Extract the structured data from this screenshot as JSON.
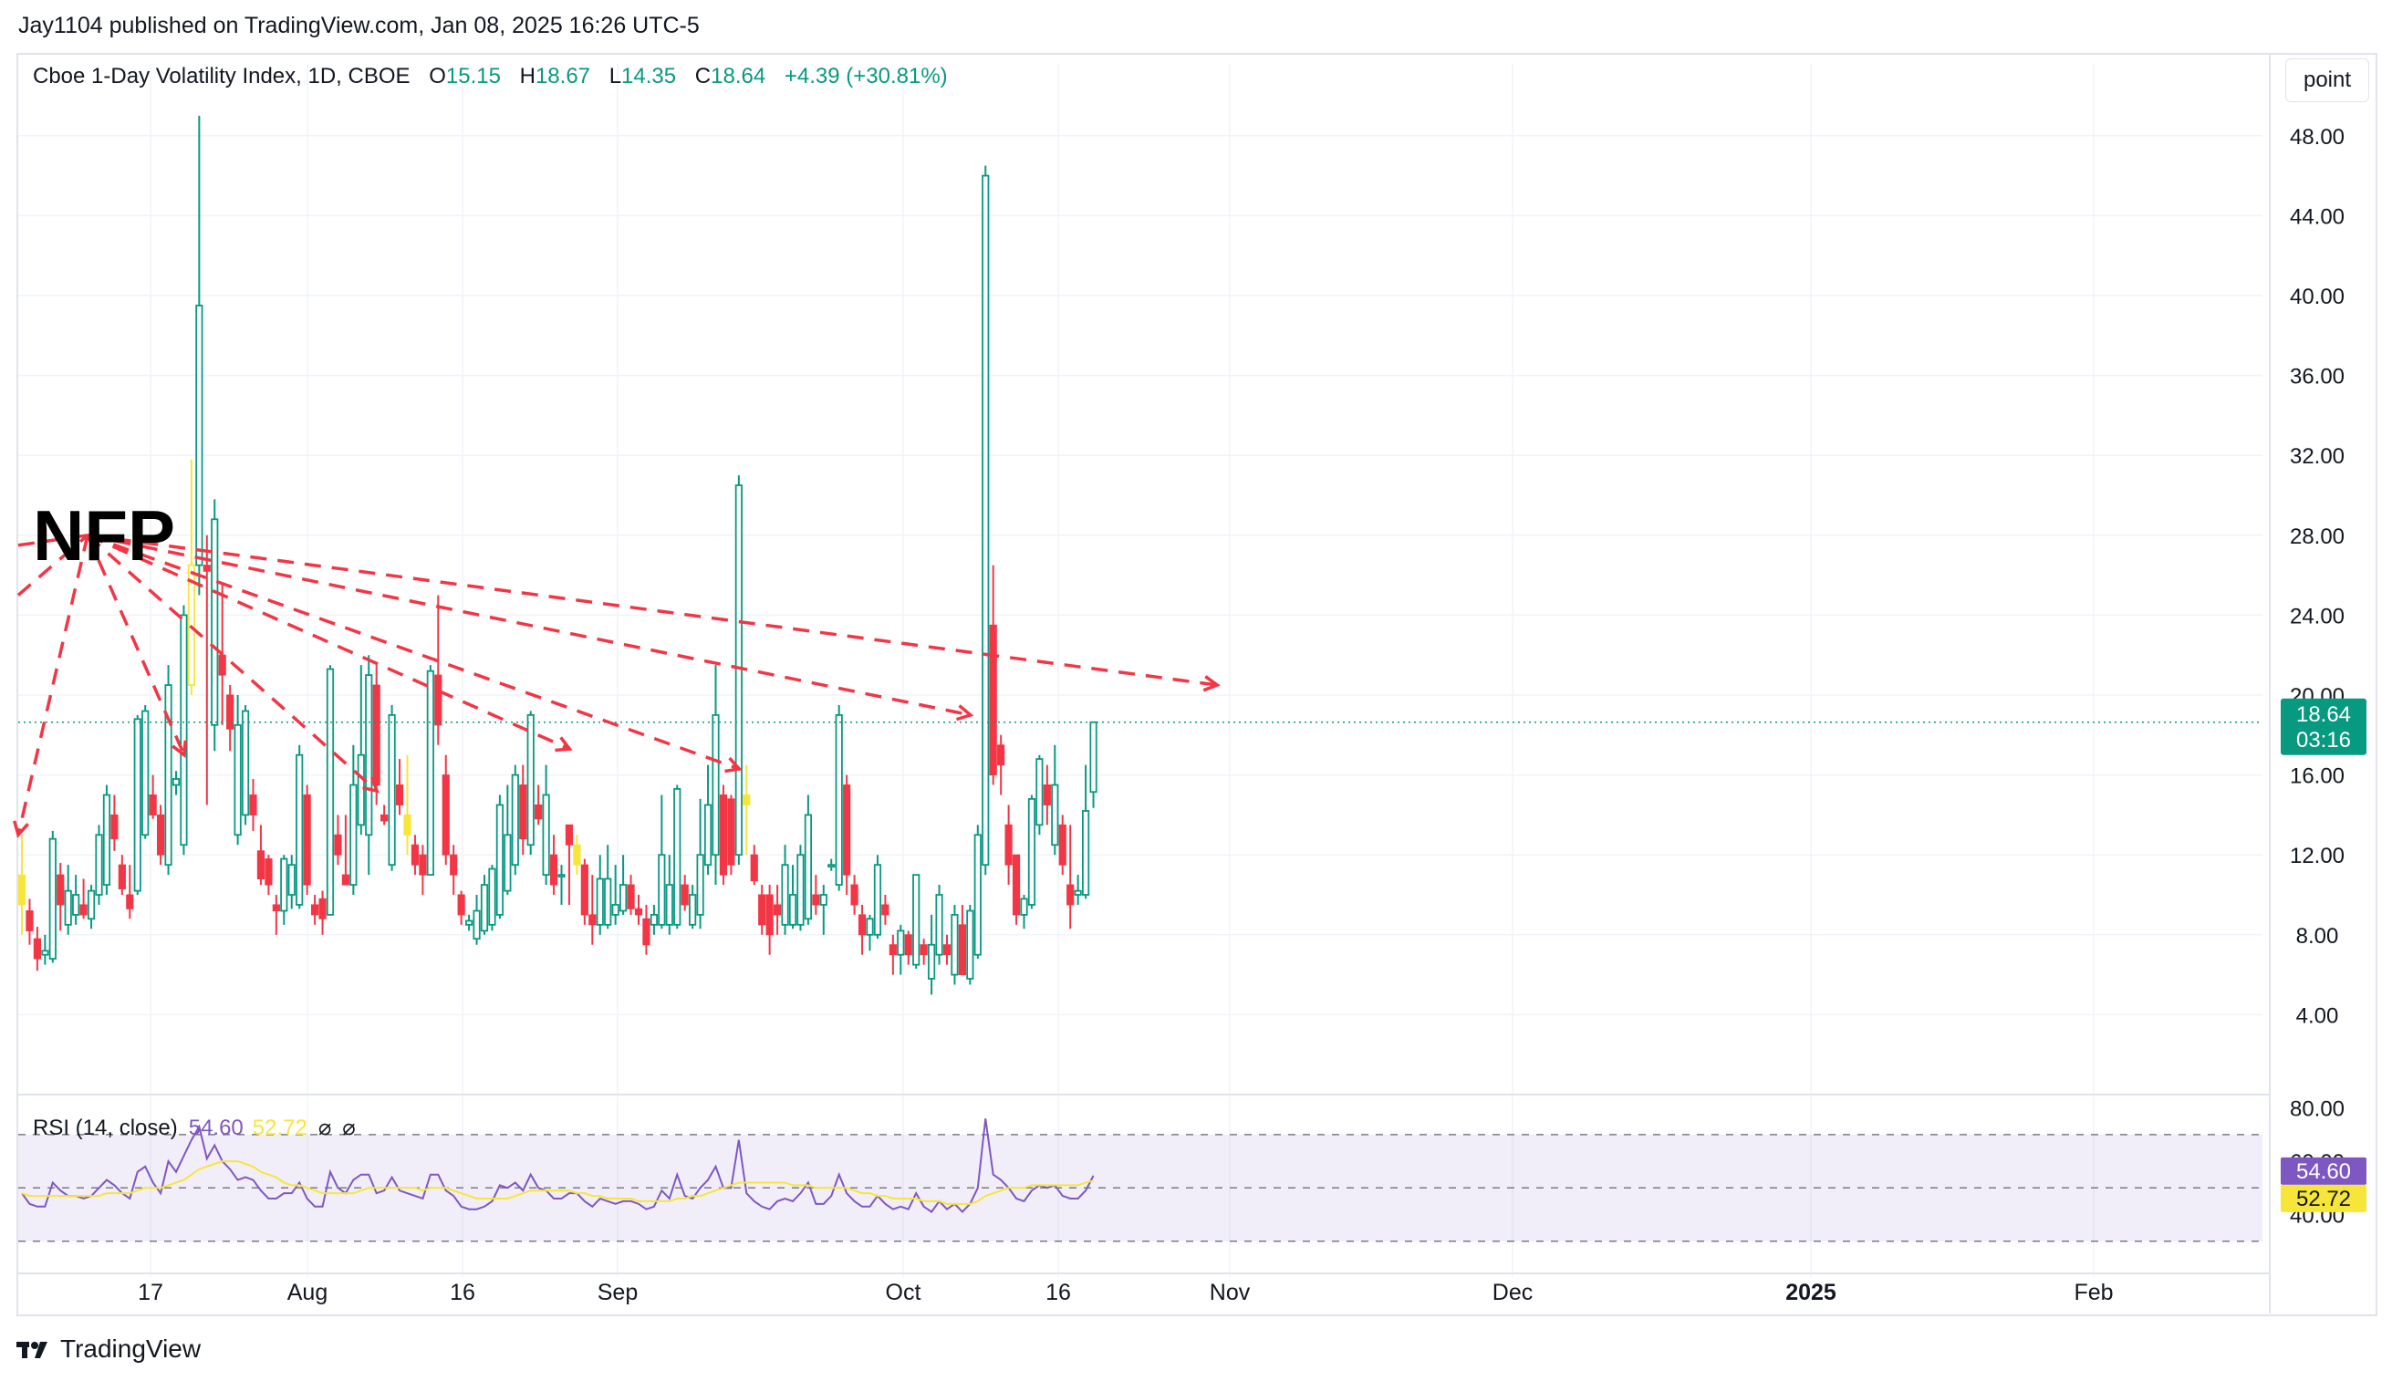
{
  "header": {
    "credit": "Jay1104 published on TradingView.com, Jan 08, 2025 16:26 UTC-5"
  },
  "legend": {
    "symbol": "Cboe 1-Day Volatility Index, 1D, CBOE",
    "o_label": "O",
    "o_value": "15.15",
    "h_label": "H",
    "h_value": "18.67",
    "l_label": "L",
    "l_value": "14.35",
    "c_label": "C",
    "c_value": "18.64",
    "change": "+4.39 (+30.81%)"
  },
  "scale_button": "point",
  "annotation": {
    "text": "NFP"
  },
  "price_badge": {
    "price": "18.64",
    "countdown": "03:16"
  },
  "rsi_legend": {
    "label": "RSI (14, close)",
    "rsi_value": "54.60",
    "ma_value": "52.72",
    "eye1": "⌀",
    "eye2": "⌀"
  },
  "brand": {
    "name": "TradingView"
  },
  "colors": {
    "up": "#089981",
    "down": "#f23645",
    "highlight": "#f7e63a",
    "arrows": "#f23645",
    "rsi": "#7e57c2",
    "rsi_ma": "#f7e63a"
  },
  "chart_data": {
    "type": "candlestick",
    "y_ticks": [
      4,
      8,
      12,
      16,
      20,
      24,
      28,
      32,
      36,
      40,
      44,
      48
    ],
    "ylim": [
      0,
      50
    ],
    "x_labels": [
      "17",
      "Aug",
      "16",
      "Sep",
      "Oct",
      "16",
      "Nov",
      "Dec",
      "2025",
      "Feb"
    ],
    "last_price": 18.64,
    "candles": [
      [
        11.0,
        13.0,
        8.0,
        9.5
      ],
      [
        9.2,
        9.8,
        7.5,
        8.2
      ],
      [
        7.8,
        8.4,
        6.2,
        6.8
      ],
      [
        7.0,
        8.0,
        6.5,
        7.2
      ],
      [
        6.8,
        13.2,
        6.6,
        12.8
      ],
      [
        11.0,
        11.6,
        8.2,
        9.5
      ],
      [
        8.5,
        11.5,
        8.0,
        10.2
      ],
      [
        9.0,
        11.0,
        8.5,
        10.0
      ],
      [
        9.5,
        10.8,
        8.8,
        9.0
      ],
      [
        8.8,
        10.5,
        8.3,
        10.2
      ],
      [
        10.0,
        13.5,
        9.5,
        13.0
      ],
      [
        10.5,
        15.5,
        10.0,
        15.0
      ],
      [
        14.0,
        15.0,
        12.2,
        12.8
      ],
      [
        11.5,
        12.0,
        10.0,
        10.3
      ],
      [
        10.0,
        11.5,
        8.8,
        9.3
      ],
      [
        10.2,
        19.0,
        10.0,
        18.8
      ],
      [
        13.0,
        19.5,
        12.8,
        19.2
      ],
      [
        15.0,
        16.0,
        13.8,
        14.0
      ],
      [
        14.0,
        14.5,
        11.5,
        12.0
      ],
      [
        11.5,
        21.5,
        11.0,
        20.5
      ],
      [
        15.5,
        16.2,
        15.0,
        15.8
      ],
      [
        12.5,
        24.5,
        12.0,
        24.0
      ],
      [
        20.5,
        31.8,
        20.0,
        26.5
      ],
      [
        26.5,
        49.0,
        25.0,
        39.5
      ],
      [
        26.5,
        28.0,
        14.5,
        26.2
      ],
      [
        18.5,
        29.8,
        17.2,
        28.8
      ],
      [
        22.0,
        25.5,
        18.5,
        21.0
      ],
      [
        20.0,
        20.5,
        17.2,
        18.3
      ],
      [
        13.0,
        20.0,
        12.5,
        18.5
      ],
      [
        14.0,
        19.5,
        13.5,
        19.2
      ],
      [
        15.0,
        15.8,
        13.2,
        14.0
      ],
      [
        12.2,
        13.5,
        10.5,
        10.8
      ],
      [
        11.8,
        12.0,
        10.0,
        10.5
      ],
      [
        9.5,
        10.0,
        8.0,
        9.2
      ],
      [
        9.2,
        12.0,
        8.5,
        11.8
      ],
      [
        10.0,
        12.0,
        9.3,
        11.5
      ],
      [
        9.5,
        17.5,
        9.3,
        17.0
      ],
      [
        15.0,
        15.5,
        10.0,
        10.5
      ],
      [
        9.5,
        10.0,
        8.5,
        9.0
      ],
      [
        9.8,
        10.2,
        8.0,
        8.8
      ],
      [
        9.0,
        21.5,
        9.0,
        21.3
      ],
      [
        13.0,
        14.0,
        11.5,
        12.0
      ],
      [
        11.0,
        14.0,
        10.5,
        10.5
      ],
      [
        10.5,
        17.5,
        10.0,
        15.5
      ],
      [
        13.5,
        21.5,
        13.0,
        17.0
      ],
      [
        13.0,
        22.0,
        11.0,
        21.0
      ],
      [
        20.5,
        21.5,
        14.5,
        15.5
      ],
      [
        14.0,
        14.5,
        13.5,
        13.7
      ],
      [
        11.5,
        19.5,
        11.2,
        19.0
      ],
      [
        15.5,
        16.8,
        14.0,
        14.5
      ],
      [
        14.0,
        17.0,
        12.0,
        13.0
      ],
      [
        12.5,
        13.0,
        11.0,
        11.5
      ],
      [
        12.0,
        12.5,
        10.0,
        11.0
      ],
      [
        11.0,
        21.5,
        11.0,
        21.2
      ],
      [
        21.0,
        25.0,
        17.5,
        18.5
      ],
      [
        16.0,
        17.0,
        11.5,
        12.0
      ],
      [
        12.0,
        12.5,
        10.0,
        11.0
      ],
      [
        10.0,
        10.2,
        8.5,
        9.0
      ],
      [
        8.5,
        9.0,
        8.2,
        8.7
      ],
      [
        7.8,
        10.0,
        7.5,
        9.2
      ],
      [
        8.2,
        11.0,
        8.0,
        10.5
      ],
      [
        8.5,
        11.5,
        8.2,
        11.3
      ],
      [
        9.0,
        15.0,
        8.8,
        14.5
      ],
      [
        10.2,
        15.5,
        10.0,
        13.0
      ],
      [
        11.5,
        16.5,
        11.0,
        16.0
      ],
      [
        15.5,
        16.5,
        12.0,
        12.8
      ],
      [
        12.5,
        19.2,
        12.0,
        19.0
      ],
      [
        14.5,
        15.5,
        13.5,
        13.8
      ],
      [
        11.0,
        16.5,
        10.5,
        15.0
      ],
      [
        12.0,
        13.0,
        10.0,
        10.5
      ],
      [
        11.0,
        11.5,
        9.5,
        11.0
      ],
      [
        13.5,
        13.5,
        9.5,
        12.5
      ],
      [
        12.5,
        13.0,
        11.0,
        11.5
      ],
      [
        11.5,
        11.8,
        8.5,
        9.0
      ],
      [
        9.0,
        11.0,
        7.5,
        8.5
      ],
      [
        8.5,
        12.0,
        8.0,
        10.8
      ],
      [
        8.5,
        12.5,
        8.3,
        10.8
      ],
      [
        9.0,
        11.5,
        8.5,
        9.5
      ],
      [
        9.2,
        12.0,
        9.0,
        10.5
      ],
      [
        10.5,
        11.0,
        9.0,
        9.3
      ],
      [
        9.3,
        10.0,
        8.5,
        9.0
      ],
      [
        8.8,
        9.5,
        7.0,
        7.5
      ],
      [
        8.5,
        9.5,
        8.0,
        9.0
      ],
      [
        8.5,
        15.0,
        8.3,
        12.0
      ],
      [
        8.5,
        12.0,
        8.0,
        10.5
      ],
      [
        8.5,
        15.5,
        8.3,
        15.3
      ],
      [
        10.5,
        11.0,
        9.2,
        9.5
      ],
      [
        8.5,
        10.5,
        8.3,
        10.0
      ],
      [
        9.0,
        14.8,
        8.3,
        12.0
      ],
      [
        11.5,
        16.5,
        11.0,
        14.5
      ],
      [
        12.0,
        21.5,
        10.5,
        19.0
      ],
      [
        15.0,
        15.5,
        10.5,
        11.0
      ],
      [
        14.8,
        15.0,
        11.0,
        11.5
      ],
      [
        12.0,
        31.0,
        11.5,
        30.5
      ],
      [
        15.0,
        16.5,
        12.0,
        14.5
      ],
      [
        12.0,
        12.5,
        10.5,
        10.7
      ],
      [
        10.0,
        10.5,
        8.0,
        8.5
      ],
      [
        10.0,
        10.5,
        7.0,
        8.0
      ],
      [
        9.5,
        10.5,
        8.0,
        9.0
      ],
      [
        8.5,
        12.5,
        8.0,
        11.5
      ],
      [
        8.5,
        11.5,
        8.3,
        10.0
      ],
      [
        8.5,
        12.5,
        8.2,
        12.0
      ],
      [
        8.8,
        15.0,
        8.5,
        14.0
      ],
      [
        10.0,
        11.0,
        9.0,
        9.5
      ],
      [
        9.5,
        10.5,
        8.0,
        10.0
      ],
      [
        11.5,
        11.8,
        11.2,
        11.5
      ],
      [
        10.5,
        19.5,
        10.2,
        19.0
      ],
      [
        15.5,
        16.0,
        10.0,
        11.0
      ],
      [
        10.5,
        11.0,
        9.0,
        9.5
      ],
      [
        9.0,
        9.5,
        7.0,
        8.0
      ],
      [
        8.0,
        9.0,
        7.2,
        8.8
      ],
      [
        8.0,
        12.0,
        7.8,
        11.5
      ],
      [
        9.5,
        10.0,
        8.5,
        9.0
      ],
      [
        7.5,
        8.0,
        6.0,
        7.0
      ],
      [
        7.0,
        8.5,
        6.0,
        8.2
      ],
      [
        8.0,
        8.2,
        6.5,
        7.0
      ],
      [
        6.5,
        11.0,
        6.3,
        11.0
      ],
      [
        7.5,
        7.8,
        6.5,
        7.0
      ],
      [
        5.8,
        9.0,
        5.0,
        7.5
      ],
      [
        7.0,
        10.5,
        6.5,
        10.0
      ],
      [
        7.5,
        8.0,
        6.5,
        7.0
      ],
      [
        6.0,
        9.5,
        5.5,
        9.0
      ],
      [
        8.5,
        9.5,
        6.0,
        6.0
      ],
      [
        5.8,
        9.5,
        5.5,
        9.2
      ],
      [
        7.0,
        13.5,
        6.8,
        13.0
      ],
      [
        11.5,
        46.5,
        11.0,
        46.0
      ],
      [
        23.5,
        26.5,
        15.5,
        16.0
      ],
      [
        17.5,
        18.0,
        15.0,
        16.5
      ],
      [
        13.5,
        14.5,
        10.5,
        11.5
      ],
      [
        12.0,
        12.0,
        8.5,
        9.0
      ],
      [
        9.0,
        10.0,
        8.3,
        9.8
      ],
      [
        9.5,
        15.0,
        9.3,
        14.8
      ],
      [
        13.5,
        17.0,
        13.0,
        16.8
      ],
      [
        15.5,
        16.5,
        13.5,
        14.5
      ],
      [
        12.5,
        17.5,
        12.0,
        15.5
      ],
      [
        13.5,
        14.0,
        11.0,
        11.5
      ],
      [
        10.5,
        13.5,
        8.3,
        9.5
      ],
      [
        10.0,
        11.0,
        9.5,
        10.2
      ],
      [
        10.0,
        16.5,
        9.8,
        14.2
      ],
      [
        15.15,
        18.67,
        14.35,
        18.64
      ]
    ],
    "rsi": [
      48,
      44,
      43,
      43,
      52,
      49,
      47,
      47,
      46,
      47,
      50,
      53,
      51,
      48,
      46,
      56,
      58,
      52,
      48,
      60,
      56,
      62,
      68,
      73,
      61,
      66,
      60,
      57,
      53,
      54,
      53,
      49,
      46,
      46,
      48,
      48,
      52,
      46,
      43,
      43,
      56,
      50,
      48,
      53,
      55,
      55,
      48,
      49,
      54,
      49,
      48,
      47,
      46,
      55,
      55,
      49,
      47,
      43,
      42,
      42,
      43,
      45,
      51,
      50,
      52,
      49,
      55,
      50,
      49,
      46,
      46,
      48,
      48,
      45,
      43,
      46,
      45,
      44,
      45,
      45,
      44,
      42,
      43,
      49,
      46,
      55,
      47,
      46,
      50,
      53,
      58,
      50,
      50,
      68,
      48,
      45,
      43,
      42,
      45,
      46,
      45,
      48,
      52,
      44,
      44,
      47,
      55,
      48,
      45,
      43,
      43,
      47,
      44,
      42,
      43,
      42,
      48,
      43,
      41,
      45,
      42,
      44,
      41,
      44,
      50,
      76,
      55,
      53,
      50,
      46,
      45,
      49,
      51,
      50,
      51,
      47,
      46,
      46,
      49,
      54.6
    ],
    "rsi_ma": [
      48,
      47,
      47,
      47,
      47,
      47,
      47,
      47,
      47,
      47,
      47,
      48,
      48,
      48,
      48,
      49,
      50,
      50,
      50,
      51,
      52,
      53,
      55,
      57,
      58,
      59,
      60,
      60,
      60,
      59,
      58,
      56,
      55,
      54,
      52,
      51,
      51,
      50,
      49,
      48,
      48,
      48,
      48,
      48,
      49,
      50,
      50,
      50,
      50,
      50,
      50,
      50,
      49,
      50,
      50,
      50,
      49,
      48,
      47,
      46,
      46,
      46,
      46,
      46,
      47,
      48,
      49,
      49,
      49,
      49,
      49,
      49,
      48,
      48,
      47,
      47,
      46,
      46,
      46,
      46,
      45,
      45,
      45,
      45,
      45,
      46,
      46,
      47,
      47,
      48,
      49,
      50,
      51,
      52,
      52,
      52,
      52,
      52,
      52,
      52,
      51,
      51,
      51,
      50,
      50,
      50,
      50,
      50,
      49,
      48,
      48,
      47,
      47,
      46,
      46,
      46,
      46,
      45,
      45,
      45,
      44,
      44,
      44,
      44,
      45,
      47,
      48,
      49,
      50,
      50,
      50,
      51,
      51,
      51,
      51,
      51,
      51,
      51,
      52,
      52.72
    ],
    "rsi_ticks": [
      80,
      60,
      40
    ],
    "rsi_ylim": [
      20,
      85
    ]
  }
}
